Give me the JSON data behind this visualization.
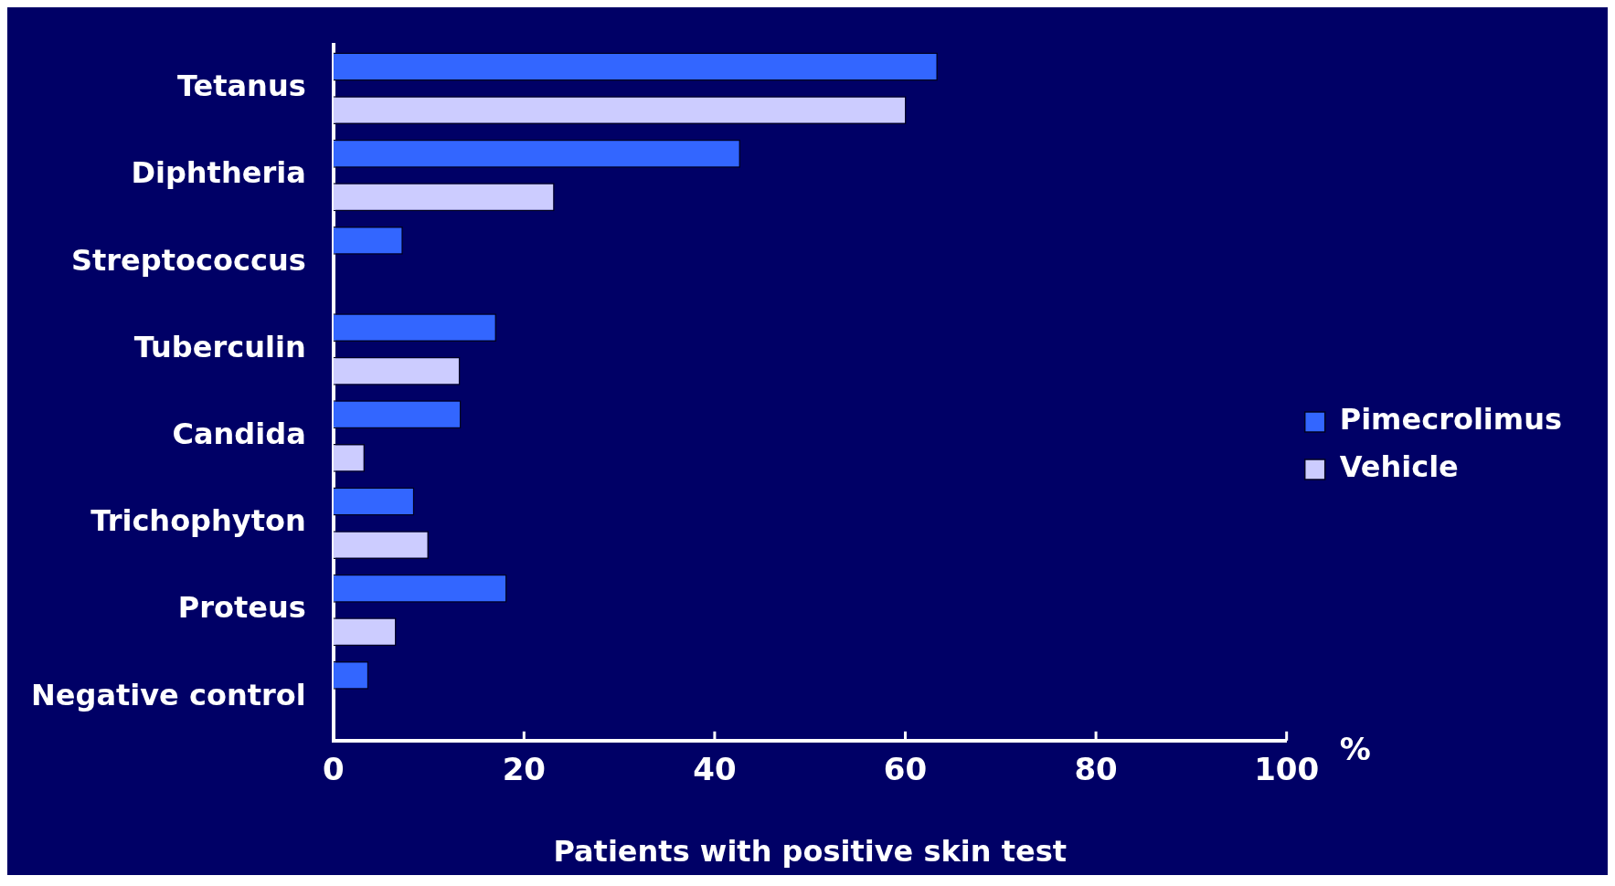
{
  "chart_data": {
    "type": "bar",
    "orientation": "horizontal",
    "categories": [
      "Tetanus",
      "Diphtheria",
      "Streptococcus",
      "Tuberculin",
      "Candida",
      "Trichophyton",
      "Proteus",
      "Negative control"
    ],
    "series": [
      {
        "name": "Pimecrolimus",
        "color": "#3366ff",
        "values": [
          63.4,
          42.7,
          7.3,
          17.1,
          13.4,
          8.5,
          18.2,
          3.7
        ]
      },
      {
        "name": "Vehicle",
        "color": "#ccccff",
        "values": [
          60.1,
          23.2,
          null,
          13.3,
          3.3,
          10.0,
          6.6,
          null
        ]
      }
    ],
    "xlim": [
      0,
      100
    ],
    "xticks": [
      0,
      20,
      40,
      60,
      80,
      100
    ],
    "xlabel": "Patients with positive skin test",
    "annotations": [
      "%"
    ],
    "grid": false,
    "legend": "right"
  }
}
